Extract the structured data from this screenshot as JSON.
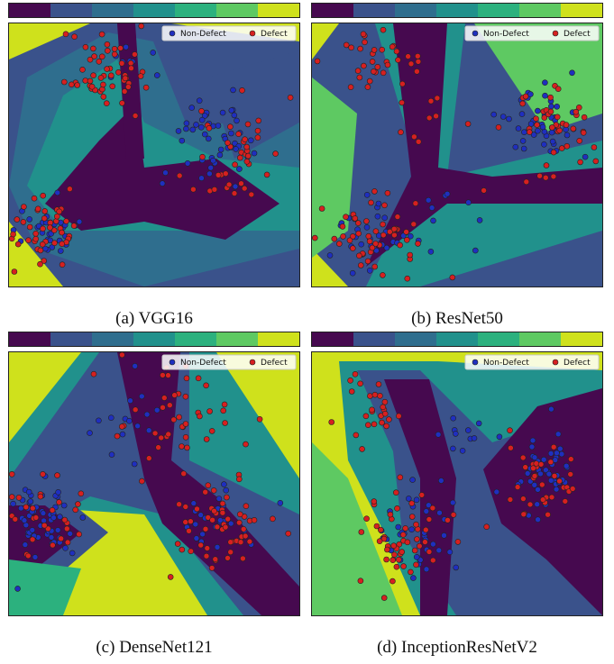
{
  "colors": {
    "bands": [
      "#46094f",
      "#3a528b",
      "#2f6e8e",
      "#21918c",
      "#2cb17e",
      "#5ec962",
      "#cfe11c"
    ],
    "non_defect": "#1f2fbf",
    "defect": "#d62020",
    "marker_edge": "#222222"
  },
  "legend": {
    "non_defect": "Non-Defect",
    "defect": "Defect",
    "placement": "top-right"
  },
  "chart_data": [
    {
      "type": "scatter",
      "caption": "(a) VGG16",
      "contour": "decision-surface",
      "series": [
        {
          "name": "Non-Defect",
          "clusters": [
            {
              "cx": 0.72,
              "cy": 0.58,
              "sx": 0.06,
              "sy": 0.08,
              "n": 45
            },
            {
              "cx": 0.13,
              "cy": 0.22,
              "sx": 0.06,
              "sy": 0.06,
              "n": 30
            },
            {
              "cx": 0.38,
              "cy": 0.8,
              "sx": 0.05,
              "sy": 0.07,
              "n": 8
            },
            {
              "cx": 0.55,
              "cy": 0.45,
              "sx": 0.05,
              "sy": 0.05,
              "n": 5
            }
          ]
        },
        {
          "name": "Defect",
          "clusters": [
            {
              "cx": 0.32,
              "cy": 0.82,
              "sx": 0.08,
              "sy": 0.07,
              "n": 55
            },
            {
              "cx": 0.78,
              "cy": 0.5,
              "sx": 0.07,
              "sy": 0.09,
              "n": 40
            },
            {
              "cx": 0.14,
              "cy": 0.22,
              "sx": 0.07,
              "sy": 0.07,
              "n": 45
            }
          ]
        }
      ]
    },
    {
      "type": "scatter",
      "caption": "(b) ResNet50",
      "contour": "decision-surface",
      "series": [
        {
          "name": "Non-Defect",
          "clusters": [
            {
              "cx": 0.78,
              "cy": 0.62,
              "sx": 0.07,
              "sy": 0.08,
              "n": 45
            },
            {
              "cx": 0.2,
              "cy": 0.17,
              "sx": 0.08,
              "sy": 0.06,
              "n": 30
            },
            {
              "cx": 0.47,
              "cy": 0.3,
              "sx": 0.06,
              "sy": 0.06,
              "n": 8
            }
          ]
        },
        {
          "name": "Defect",
          "clusters": [
            {
              "cx": 0.82,
              "cy": 0.58,
              "sx": 0.07,
              "sy": 0.08,
              "n": 45
            },
            {
              "cx": 0.22,
              "cy": 0.18,
              "sx": 0.09,
              "sy": 0.07,
              "n": 55
            },
            {
              "cx": 0.2,
              "cy": 0.85,
              "sx": 0.08,
              "sy": 0.06,
              "n": 35
            },
            {
              "cx": 0.4,
              "cy": 0.6,
              "sx": 0.05,
              "sy": 0.07,
              "n": 8
            }
          ]
        }
      ]
    },
    {
      "type": "scatter",
      "caption": "(c) DenseNet121",
      "contour": "decision-surface",
      "series": [
        {
          "name": "Non-Defect",
          "clusters": [
            {
              "cx": 0.12,
              "cy": 0.38,
              "sx": 0.06,
              "sy": 0.08,
              "n": 55
            },
            {
              "cx": 0.72,
              "cy": 0.35,
              "sx": 0.07,
              "sy": 0.07,
              "n": 25
            },
            {
              "cx": 0.4,
              "cy": 0.75,
              "sx": 0.05,
              "sy": 0.08,
              "n": 15
            }
          ]
        },
        {
          "name": "Defect",
          "clusters": [
            {
              "cx": 0.75,
              "cy": 0.35,
              "sx": 0.09,
              "sy": 0.08,
              "n": 55
            },
            {
              "cx": 0.55,
              "cy": 0.75,
              "sx": 0.1,
              "sy": 0.1,
              "n": 45
            },
            {
              "cx": 0.12,
              "cy": 0.38,
              "sx": 0.06,
              "sy": 0.07,
              "n": 30
            }
          ]
        }
      ]
    },
    {
      "type": "scatter",
      "caption": "(d) InceptionResNetV2",
      "contour": "decision-surface",
      "series": [
        {
          "name": "Non-Defect",
          "clusters": [
            {
              "cx": 0.8,
              "cy": 0.55,
              "sx": 0.06,
              "sy": 0.08,
              "n": 45
            },
            {
              "cx": 0.37,
              "cy": 0.28,
              "sx": 0.06,
              "sy": 0.08,
              "n": 35
            },
            {
              "cx": 0.5,
              "cy": 0.7,
              "sx": 0.06,
              "sy": 0.08,
              "n": 12
            }
          ]
        },
        {
          "name": "Defect",
          "clusters": [
            {
              "cx": 0.8,
              "cy": 0.55,
              "sx": 0.07,
              "sy": 0.08,
              "n": 35
            },
            {
              "cx": 0.3,
              "cy": 0.3,
              "sx": 0.09,
              "sy": 0.1,
              "n": 55
            },
            {
              "cx": 0.2,
              "cy": 0.78,
              "sx": 0.07,
              "sy": 0.08,
              "n": 25
            }
          ]
        }
      ]
    }
  ]
}
